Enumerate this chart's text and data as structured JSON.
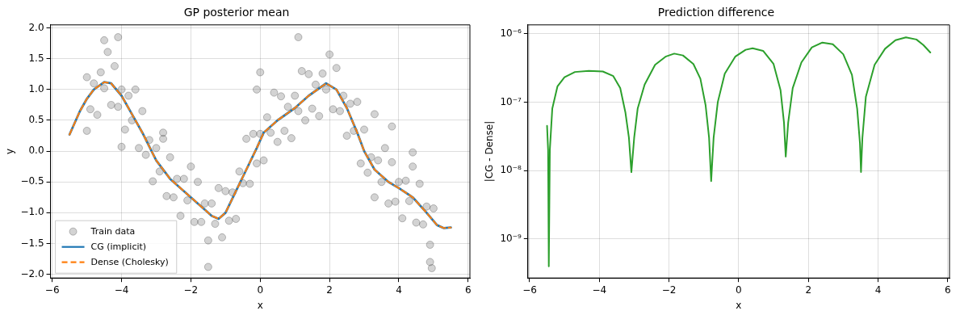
{
  "chart_data": [
    {
      "type": "scatter",
      "title": "GP posterior mean",
      "xlabel": "x",
      "ylabel": "y",
      "legend": "bottom left",
      "grid": true,
      "xlim": [
        -6.05,
        6.05
      ],
      "ylim": [
        -2.06,
        2.05
      ],
      "xticks": [
        {
          "value": -6,
          "label": "−6"
        },
        {
          "value": -4,
          "label": "−4"
        },
        {
          "value": -2,
          "label": "−2"
        },
        0,
        2,
        4,
        6
      ],
      "yticks": [
        {
          "value": -2,
          "label": "−2.0"
        },
        {
          "value": -1.5,
          "label": "−1.5"
        },
        {
          "value": -1,
          "label": "−1.0"
        },
        {
          "value": -0.5,
          "label": "−0.5"
        },
        {
          "value": 0,
          "label": "0.0"
        },
        0.5,
        {
          "value": 1,
          "label": "1.0"
        },
        1.5,
        {
          "value": 2,
          "label": "2.0"
        }
      ],
      "series": [
        {
          "name": "Train data",
          "type": "scatter",
          "marker": "circle",
          "color": "#808080",
          "x": [
            -5.0,
            -4.9,
            -4.8,
            -4.7,
            -4.6,
            -4.5,
            -4.4,
            -4.3,
            -4.2,
            -4.1,
            -4.0,
            -3.9,
            -3.8,
            -3.7,
            -3.6,
            -3.5,
            -3.4,
            -3.3,
            -3.2,
            -3.1,
            -3.0,
            -2.9,
            -2.8,
            -2.7,
            -2.6,
            -2.5,
            -2.4,
            -2.3,
            -2.2,
            -2.1,
            -2.0,
            -1.9,
            -1.8,
            -1.7,
            -1.6,
            -1.5,
            -1.4,
            -1.3,
            -1.2,
            -1.1,
            -1.0,
            -0.9,
            -0.8,
            -0.7,
            -0.6,
            -0.5,
            -0.4,
            -0.3,
            -0.2,
            -0.1,
            0.0,
            0.1,
            0.2,
            0.3,
            0.4,
            0.5,
            0.6,
            0.7,
            0.8,
            0.9,
            1.0,
            1.1,
            1.2,
            1.3,
            1.4,
            1.5,
            1.6,
            1.7,
            1.8,
            1.9,
            2.0,
            2.1,
            2.2,
            2.3,
            2.4,
            2.5,
            2.6,
            2.7,
            2.8,
            2.9,
            3.0,
            3.1,
            3.2,
            3.3,
            3.4,
            3.5,
            3.6,
            3.7,
            3.8,
            3.9,
            4.0,
            4.1,
            4.2,
            4.3,
            4.4,
            4.5,
            4.6,
            4.7,
            4.8,
            4.9,
            5.0,
            -4.1,
            -4.5,
            1.1,
            -1.5,
            4.95,
            4.9,
            -4.0,
            -2.8,
            3.8,
            4.4,
            3.3,
            -5.0,
            -0.1,
            0.0
          ],
          "values": [
            1.2,
            0.68,
            1.1,
            0.59,
            1.28,
            1.02,
            1.61,
            0.75,
            1.38,
            0.72,
            1.0,
            0.35,
            0.9,
            0.5,
            1.0,
            0.05,
            0.65,
            -0.06,
            0.18,
            -0.49,
            0.05,
            -0.33,
            0.2,
            -0.73,
            -0.1,
            -0.75,
            -0.45,
            -1.05,
            -0.45,
            -0.8,
            -0.25,
            -1.15,
            -0.5,
            -1.15,
            -0.85,
            -1.45,
            -0.85,
            -1.18,
            -0.6,
            -1.4,
            -0.65,
            -1.13,
            -0.67,
            -1.1,
            -0.33,
            -0.52,
            0.2,
            -0.53,
            0.28,
            -0.2,
            0.28,
            -0.15,
            0.55,
            0.3,
            0.95,
            0.15,
            0.89,
            0.33,
            0.72,
            0.21,
            0.9,
            0.65,
            1.3,
            0.5,
            1.25,
            0.69,
            1.08,
            0.57,
            1.26,
            1.0,
            1.57,
            0.68,
            1.35,
            0.65,
            0.9,
            0.25,
            0.77,
            0.33,
            0.8,
            -0.2,
            0.35,
            -0.35,
            -0.1,
            -0.75,
            -0.15,
            -0.5,
            0.05,
            -0.85,
            -0.18,
            -0.82,
            -0.5,
            -1.09,
            -0.48,
            -0.81,
            -0.25,
            -1.16,
            -0.53,
            -1.19,
            -0.9,
            -1.52,
            -0.93,
            1.85,
            1.8,
            1.85,
            -1.88,
            -1.9,
            -1.8,
            0.07,
            0.3,
            0.4,
            -0.02,
            0.6,
            0.33,
            1.0,
            1.28
          ]
        },
        {
          "name": "CG (implicit)",
          "type": "line",
          "marker": "none",
          "line_style": "solid",
          "color": "#1f77b4",
          "x": [
            -5.5,
            -5.2,
            -5.0,
            -4.8,
            -4.5,
            -4.3,
            -4.0,
            -3.7,
            -3.4,
            -3.0,
            -2.6,
            -2.2,
            -1.8,
            -1.4,
            -1.2,
            -1.0,
            -0.7,
            -0.4,
            -0.1,
            0.1,
            0.5,
            1.0,
            1.4,
            1.9,
            2.2,
            2.5,
            2.8,
            3.0,
            3.3,
            3.7,
            4.0,
            4.4,
            4.8,
            5.1,
            5.3,
            5.5
          ],
          "values": [
            0.27,
            0.65,
            0.85,
            1.0,
            1.12,
            1.1,
            0.9,
            0.6,
            0.3,
            -0.15,
            -0.45,
            -0.65,
            -0.85,
            -1.05,
            -1.1,
            -1.0,
            -0.65,
            -0.3,
            0.05,
            0.3,
            0.5,
            0.7,
            0.9,
            1.1,
            1.0,
            0.7,
            0.3,
            0.0,
            -0.3,
            -0.5,
            -0.6,
            -0.75,
            -1.0,
            -1.2,
            -1.25,
            -1.24
          ]
        },
        {
          "name": "Dense (Cholesky)",
          "type": "line",
          "marker": "none",
          "line_style": "dashed",
          "color": "#ff7f0e",
          "x": [
            -5.5,
            -5.2,
            -5.0,
            -4.8,
            -4.5,
            -4.3,
            -4.0,
            -3.7,
            -3.4,
            -3.0,
            -2.6,
            -2.2,
            -1.8,
            -1.4,
            -1.2,
            -1.0,
            -0.7,
            -0.4,
            -0.1,
            0.1,
            0.5,
            1.0,
            1.4,
            1.9,
            2.2,
            2.5,
            2.8,
            3.0,
            3.3,
            3.7,
            4.0,
            4.4,
            4.8,
            5.1,
            5.3,
            5.5
          ],
          "values": [
            0.27,
            0.65,
            0.85,
            1.0,
            1.12,
            1.1,
            0.9,
            0.6,
            0.3,
            -0.15,
            -0.45,
            -0.65,
            -0.85,
            -1.05,
            -1.1,
            -1.0,
            -0.65,
            -0.3,
            0.05,
            0.3,
            0.5,
            0.7,
            0.9,
            1.1,
            1.0,
            0.7,
            0.3,
            0.0,
            -0.3,
            -0.5,
            -0.6,
            -0.75,
            -1.0,
            -1.2,
            -1.25,
            -1.24
          ]
        }
      ]
    },
    {
      "type": "line",
      "title": "Prediction difference",
      "xlabel": "x",
      "ylabel": "|CG - Dense|",
      "log": "y",
      "grid": true,
      "marker": "none",
      "line_style": "solid",
      "xlim": [
        -6.05,
        6.05
      ],
      "ylim": [
        2.7e-10,
        1.34e-06
      ],
      "xticks": [
        {
          "value": -6,
          "label": "−6"
        },
        {
          "value": -4,
          "label": "−4"
        },
        {
          "value": -2,
          "label": "−2"
        },
        0,
        2,
        4,
        6
      ],
      "yticks": [
        {
          "value": 1e-09,
          "label": "10⁻⁹"
        },
        {
          "value": 1e-08,
          "label": "10⁻⁸"
        },
        {
          "value": 1e-07,
          "label": "10⁻⁷"
        },
        {
          "value": 1e-06,
          "label": "10⁻⁶"
        }
      ],
      "series": [
        {
          "color": "#2ca02c",
          "x": [
            -5.5,
            -5.47,
            -5.45,
            -5.42,
            -5.35,
            -5.2,
            -5.0,
            -4.7,
            -4.3,
            -3.9,
            -3.6,
            -3.4,
            -3.25,
            -3.15,
            -3.08,
            -3.0,
            -2.9,
            -2.7,
            -2.4,
            -2.1,
            -1.85,
            -1.6,
            -1.3,
            -1.1,
            -0.95,
            -0.85,
            -0.79,
            -0.72,
            -0.6,
            -0.4,
            -0.1,
            0.2,
            0.4,
            0.7,
            1.0,
            1.2,
            1.3,
            1.35,
            1.42,
            1.55,
            1.8,
            2.1,
            2.4,
            2.7,
            3.0,
            3.25,
            3.4,
            3.48,
            3.51,
            3.55,
            3.65,
            3.9,
            4.2,
            4.5,
            4.8,
            5.1,
            5.3,
            5.5
          ],
          "values": [
            4.5e-08,
            2e-08,
            4e-10,
            2e-08,
            8e-08,
            1.7e-07,
            2.3e-07,
            2.75e-07,
            2.85e-07,
            2.8e-07,
            2.4e-07,
            1.6e-07,
            7e-08,
            3e-08,
            9.5e-09,
            3e-08,
            8e-08,
            1.8e-07,
            3.5e-07,
            4.6e-07,
            5.1e-07,
            4.8e-07,
            3.6e-07,
            2.2e-07,
            9e-08,
            3e-08,
            7e-09,
            3e-08,
            1e-07,
            2.6e-07,
            4.6e-07,
            5.8e-07,
            6.1e-07,
            5.6e-07,
            3.6e-07,
            1.5e-07,
            5e-08,
            1.6e-08,
            5e-08,
            1.6e-07,
            3.8e-07,
            6.3e-07,
            7.4e-07,
            7e-07,
            5e-07,
            2.5e-07,
            8e-08,
            2.5e-08,
            9.5e-09,
            3e-08,
            1.2e-07,
            3.5e-07,
            6e-07,
            8e-07,
            8.8e-07,
            8.2e-07,
            6.8e-07,
            5.3e-07
          ]
        }
      ]
    }
  ]
}
